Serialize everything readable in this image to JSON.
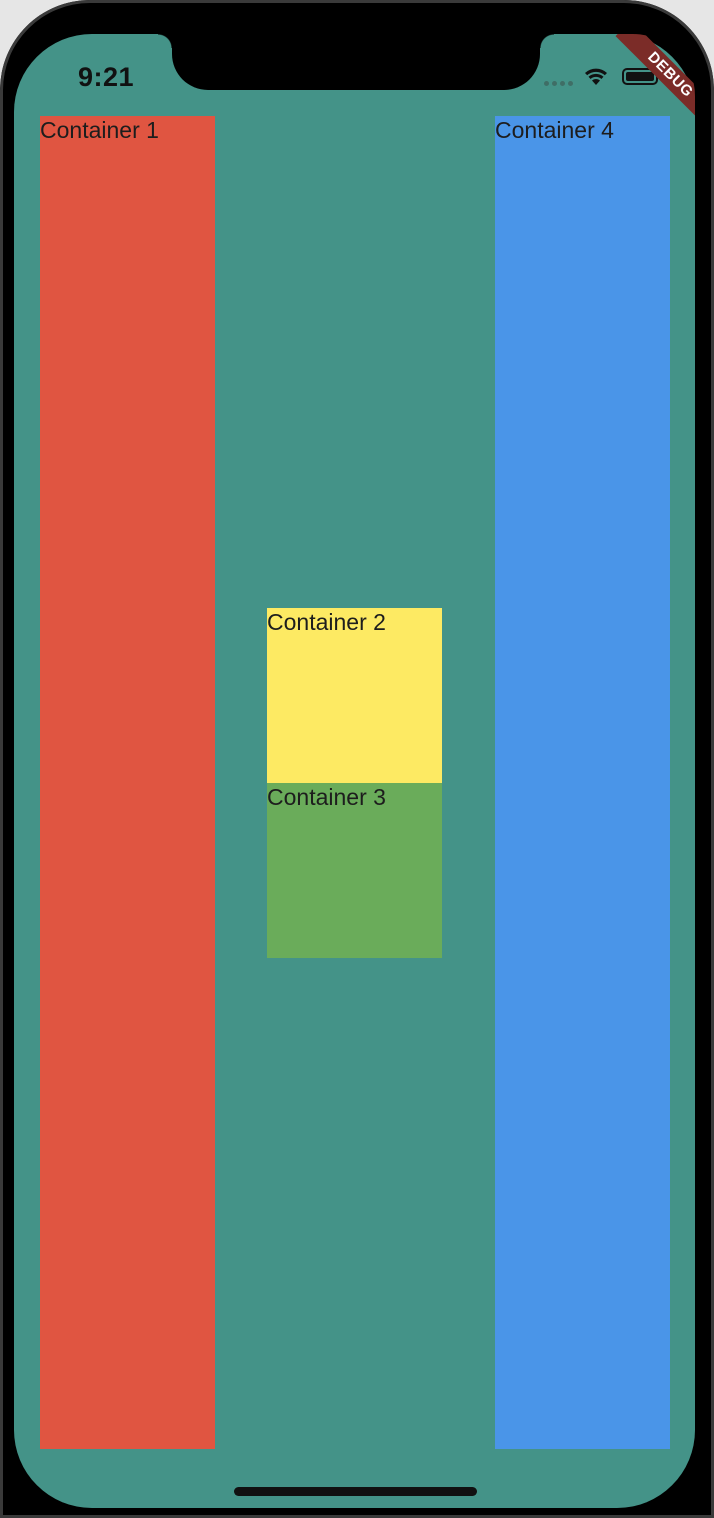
{
  "status_bar": {
    "time": "9:21"
  },
  "debug_banner": {
    "label": "DEBUG"
  },
  "containers": [
    {
      "label": "Container 1",
      "color": "#e05541"
    },
    {
      "label": "Container 2",
      "color": "#fdea63"
    },
    {
      "label": "Container 3",
      "color": "#6aac5a"
    },
    {
      "label": "Container 4",
      "color": "#4a95e8"
    }
  ],
  "colors": {
    "background": "#449388",
    "label_text": "#1d1d1d",
    "status_text": "#111111",
    "signal_dots": "#3f6e66",
    "battery_fill": "#111111",
    "home_indicator": "#111111",
    "debug_ribbon": "#7b2c28"
  },
  "icons": {
    "wifi": "wifi-icon",
    "battery": "battery-icon",
    "signal": "cellular-signal-icon"
  }
}
